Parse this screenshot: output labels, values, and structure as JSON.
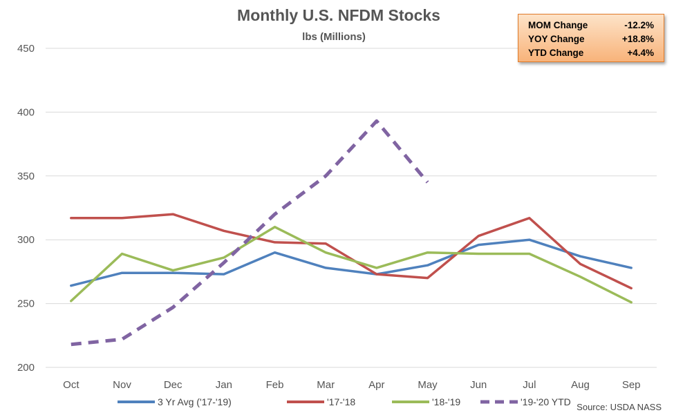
{
  "chart_data": {
    "type": "line",
    "title": "Monthly U.S. NFDM Stocks",
    "subtitle": "lbs (Millions)",
    "categories": [
      "Oct",
      "Nov",
      "Dec",
      "Jan",
      "Feb",
      "Mar",
      "Apr",
      "May",
      "Jun",
      "Jul",
      "Aug",
      "Sep"
    ],
    "ylim": [
      200,
      450
    ],
    "yticks": [
      200,
      250,
      300,
      350,
      400,
      450
    ],
    "grid": true,
    "legend_position": "bottom",
    "series": [
      {
        "name": "3 Yr Avg ('17-'19)",
        "color": "#4f81bd",
        "dashed": false,
        "values": [
          264,
          274,
          274,
          273,
          290,
          278,
          273,
          280,
          296,
          300,
          287,
          278
        ]
      },
      {
        "name": "'17-'18",
        "color": "#c0504d",
        "dashed": false,
        "values": [
          317,
          317,
          320,
          307,
          298,
          297,
          273,
          270,
          303,
          317,
          281,
          262
        ]
      },
      {
        "name": "'18-'19",
        "color": "#9bbb59",
        "dashed": false,
        "values": [
          252,
          289,
          276,
          286,
          310,
          290,
          278,
          290,
          289,
          289,
          271,
          251
        ]
      },
      {
        "name": "'19-'20 YTD",
        "color": "#8064a2",
        "dashed": true,
        "values": [
          218,
          222,
          247,
          282,
          320,
          350,
          393,
          345,
          null,
          null,
          null,
          null
        ]
      }
    ],
    "source": "Source: USDA NASS"
  },
  "info_box": {
    "rows": [
      {
        "label": "MOM Change",
        "value": "-12.2%"
      },
      {
        "label": "YOY Change",
        "value": "+18.8%"
      },
      {
        "label": "YTD Change",
        "value": "+4.4%"
      }
    ]
  },
  "colors": {
    "box_border": "#e07b2a",
    "box_fill_top": "#fde3c8",
    "box_fill_bottom": "#f8b37a"
  }
}
